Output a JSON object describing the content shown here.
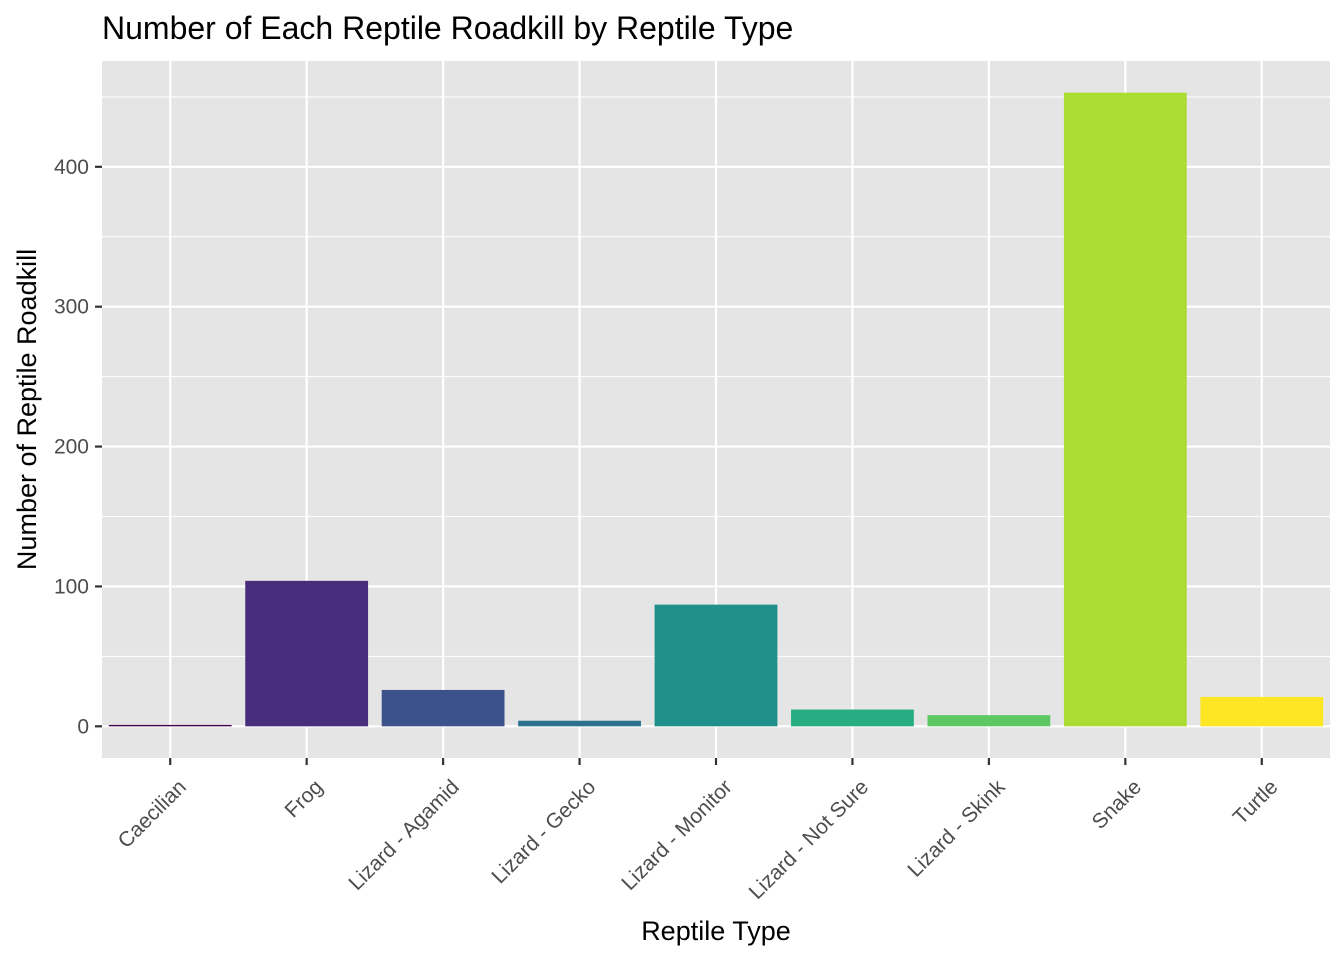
{
  "chart_data": {
    "type": "bar",
    "title": "Number of Each Reptile Roadkill by Reptile Type",
    "xlabel": "Reptile Type",
    "ylabel": "Number of Reptile Roadkill",
    "categories": [
      "Caecilian",
      "Frog",
      "Lizard - Agamid",
      "Lizard - Gecko",
      "Lizard - Monitor",
      "Lizard - Not Sure",
      "Lizard - Skink",
      "Snake",
      "Turtle"
    ],
    "values": [
      1,
      104,
      26,
      4,
      87,
      12,
      8,
      453,
      21
    ],
    "colors": [
      "#440154",
      "#472D7B",
      "#3B528B",
      "#2C728E",
      "#21908C",
      "#27AD81",
      "#5DC863",
      "#AADC32",
      "#FDE725"
    ],
    "ylim": [
      -22.65,
      475.65
    ],
    "yticks": [
      0,
      100,
      200,
      300,
      400
    ],
    "grid": true,
    "legend": "none"
  }
}
